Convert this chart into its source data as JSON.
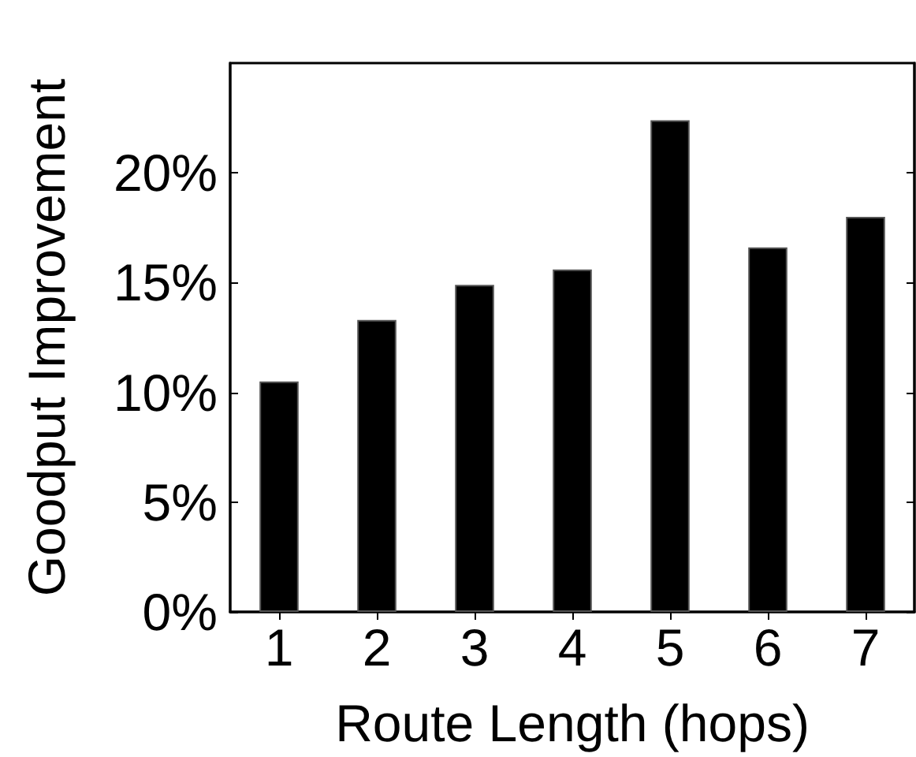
{
  "chart_data": {
    "type": "bar",
    "xlabel": "Route Length (hops)",
    "ylabel": "Goodput Improvement",
    "categories": [
      "1",
      "2",
      "3",
      "4",
      "5",
      "6",
      "7"
    ],
    "values": [
      10.5,
      13.3,
      14.9,
      15.6,
      22.4,
      16.6,
      18.0
    ],
    "color": "#000000",
    "ylim": [
      0,
      25
    ],
    "yticks": [
      {
        "value": 0,
        "label": "0%"
      },
      {
        "value": 5,
        "label": "5%"
      },
      {
        "value": 10,
        "label": "10%"
      },
      {
        "value": 15,
        "label": "15%"
      },
      {
        "value": 20,
        "label": "20%"
      }
    ],
    "data_labels": false
  }
}
